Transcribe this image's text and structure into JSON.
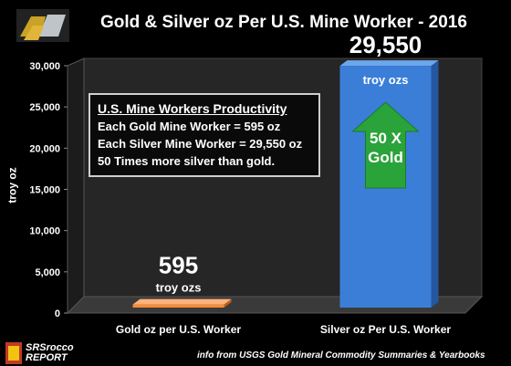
{
  "chart_data": {
    "type": "bar",
    "title": "Gold & Silver oz Per U.S. Mine Worker - 2016",
    "ylabel": "troy oz",
    "xlabel": "",
    "categories": [
      "Gold oz per U.S. Worker",
      "Silver oz Per U.S. Worker"
    ],
    "values": [
      595,
      29550
    ],
    "ylim": [
      0,
      30000
    ],
    "yticks": [
      "0",
      "5,000",
      "10,000",
      "15,000",
      "20,000",
      "25,000",
      "30,000"
    ],
    "bar_colors": [
      "#f28c3c",
      "#3a7ed8"
    ],
    "data_labels": [
      {
        "value": "595",
        "unit": "troy ozs"
      },
      {
        "value": "29,550",
        "unit": "troy ozs"
      }
    ],
    "grid": false
  },
  "annotations": {
    "arrow_line1": "50 X",
    "arrow_line2": "Gold",
    "arrow_color": "#2aa33a"
  },
  "info_box": {
    "heading": "U.S. Mine Workers Productivity",
    "line1": "Each Gold Mine Worker = 595 oz",
    "line2": "Each Silver Mine Worker = 29,550 oz",
    "line3": "50 Times more silver than gold."
  },
  "footer": {
    "source": "info from USGS Gold Mineral Commodity Summaries & Yearbooks",
    "brand_line1": "SRSrocco",
    "brand_line2": "REPORT"
  }
}
